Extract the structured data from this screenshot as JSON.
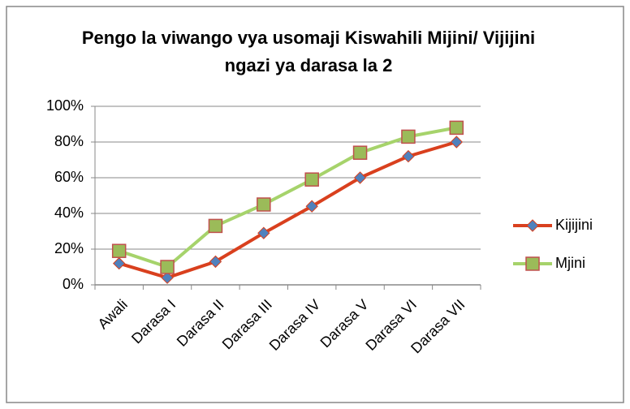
{
  "chart_data": {
    "type": "line",
    "title": "Pengo la viwango vya usomaji Kiswahili Mijini/ Vijijini ngazi ya darasa la 2",
    "categories": [
      "Awali",
      "Darasa I",
      "Darasa II",
      "Darasa III",
      "Darasa IV",
      "Darasa V",
      "Darasa VI",
      "Darasa VII"
    ],
    "series": [
      {
        "name": "Kijijini",
        "color": "#d9401e",
        "marker": "diamond",
        "marker_color": "#4f81bd",
        "values": [
          12,
          4,
          13,
          29,
          44,
          60,
          72,
          80
        ]
      },
      {
        "name": "Mjini",
        "color": "#a6d36b",
        "marker": "square",
        "marker_color": "#9bbb59",
        "values": [
          19,
          10,
          33,
          45,
          59,
          74,
          83,
          88
        ]
      }
    ],
    "ylim": [
      0,
      100
    ],
    "yticks": [
      {
        "value": 0,
        "label": "0%"
      },
      {
        "value": 20,
        "label": "20%"
      },
      {
        "value": 40,
        "label": "40%"
      },
      {
        "value": 60,
        "label": "60%"
      },
      {
        "value": 80,
        "label": "80%"
      },
      {
        "value": 100,
        "label": "100%"
      }
    ],
    "grid": true,
    "legend": "right"
  }
}
